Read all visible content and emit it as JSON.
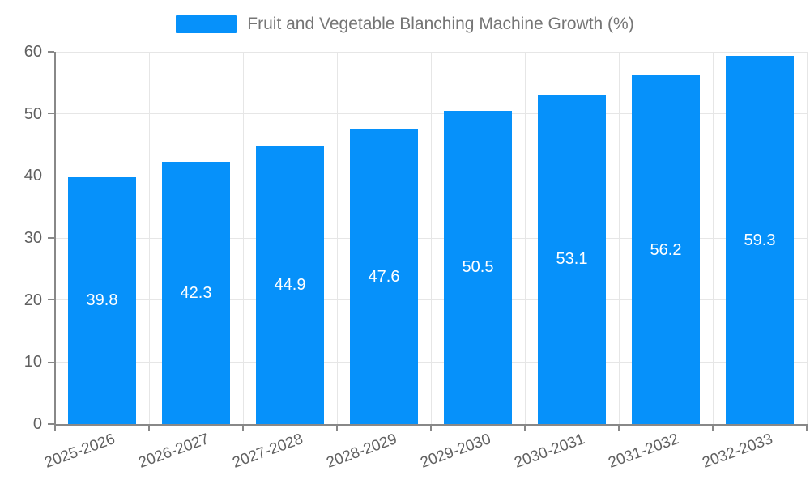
{
  "chart_data": {
    "type": "bar",
    "title": "Fruit and Vegetable Blanching Machine Growth (%)",
    "legend_entries": [
      "Fruit and Vegetable Blanching Machine Growth (%)"
    ],
    "legend_position": "top-center",
    "categories": [
      "2025-2026",
      "2026-2027",
      "2027-2028",
      "2028-2029",
      "2029-2030",
      "2030-2031",
      "2031-2032",
      "2032-2033"
    ],
    "values": [
      39.8,
      42.3,
      44.9,
      47.6,
      50.5,
      53.1,
      56.2,
      59.3
    ],
    "value_labels": [
      "39.8",
      "42.3",
      "44.9",
      "47.6",
      "50.5",
      "53.1",
      "56.2",
      "59.3"
    ],
    "value_label_position": "inside-center",
    "xlabel": "",
    "ylabel": "",
    "ylim": [
      0,
      60
    ],
    "yticks": [
      0,
      10,
      20,
      30,
      40,
      50,
      60
    ],
    "ytick_labels": [
      "0",
      "10",
      "20",
      "30",
      "40",
      "50",
      "60"
    ],
    "grid": true,
    "x_tick_rotation_deg": -20
  },
  "colors": {
    "bar": "#0691fa",
    "grid": "#e6e6e6",
    "axis": "#888888",
    "tick_label": "#606060",
    "legend_text": "#757575",
    "value_label": "#ffffff",
    "background": "#ffffff"
  }
}
